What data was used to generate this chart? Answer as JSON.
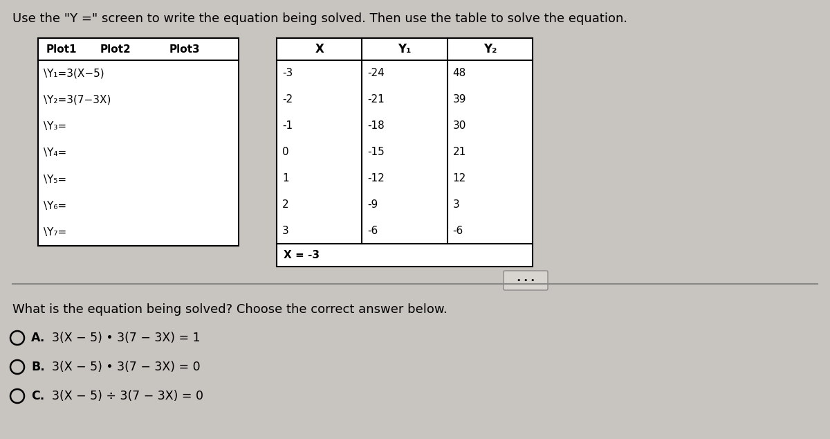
{
  "title": "Use the \"Y =\" screen to write the equation being solved. Then use the table to solve the equation.",
  "bg_color": "#c8c4c0",
  "left_table": {
    "header": [
      "Plot1",
      "Plot2",
      "Plot3"
    ],
    "rows": [
      "\\Y₁=3(X−5)",
      "\\Y₂=3(7−3X)",
      "\\Y₃=",
      "\\Y₄=",
      "\\Y₅=",
      "\\Y₆=",
      "\\Y₇="
    ]
  },
  "right_table": {
    "headers": [
      "X",
      "Y₁",
      "Y₂"
    ],
    "rows": [
      [
        "-3",
        "-24",
        "48"
      ],
      [
        "-2",
        "-21",
        "39"
      ],
      [
        "-1",
        "-18",
        "30"
      ],
      [
        "0",
        "-15",
        "21"
      ],
      [
        "1",
        "-12",
        "12"
      ],
      [
        "2",
        "-9",
        "3"
      ],
      [
        "3",
        "-6",
        "-6"
      ]
    ],
    "footer": "X = -3"
  },
  "question": "What is the equation being solved? Choose the correct answer below.",
  "choices": [
    {
      "label": "A.",
      "text": "3(X − 5) • 3(7 − 3X) = 1"
    },
    {
      "label": "B.",
      "text": "3(X − 5) • 3(7 − 3X) = 0"
    },
    {
      "label": "C.",
      "text": "3(X − 5) ÷ 3(7 − 3X) = 0"
    }
  ]
}
